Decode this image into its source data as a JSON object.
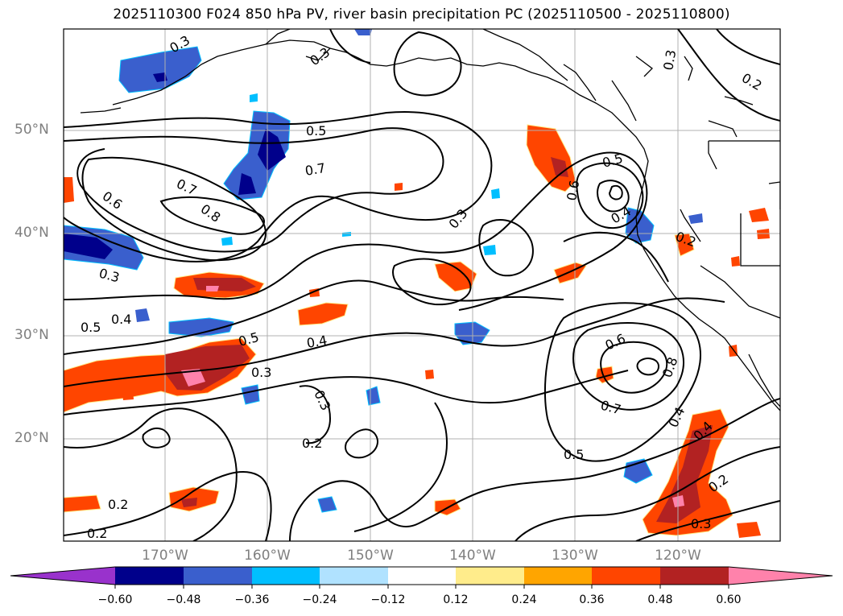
{
  "title": "2025110300 F024 850 hPa PV, river basin precipitation PC (2025110500 - 2025110800)",
  "map": {
    "lat_labels": [
      "50°N",
      "40°N",
      "30°N",
      "20°N"
    ],
    "lon_labels": [
      "170°W",
      "160°W",
      "150°W",
      "140°W",
      "130°W",
      "120°W"
    ],
    "contour_labels": [
      "0.3",
      "0.3",
      "0.3",
      "0.2",
      "0.5",
      "0.7",
      "0.6",
      "0.7",
      "0.8",
      "0.3",
      "0.6",
      "0.5",
      "0.4",
      "0.2",
      "0.3",
      "0.5",
      "0.4",
      "0.5",
      "0.4",
      "0.3",
      "0.3",
      "0.2",
      "0.6",
      "0.8",
      "0.7",
      "0.4",
      "0.4",
      "0.5",
      "0.2",
      "0.3",
      "0.2",
      "0.2"
    ]
  },
  "colorbar": {
    "colors": [
      "#9932cc",
      "#00008b",
      "#3a5fcd",
      "#00bfff",
      "#b0e2ff",
      "#ffffff",
      "#ffec8b",
      "#ffa500",
      "#ff4500",
      "#b22222",
      "#ff82ab"
    ],
    "tick_labels": [
      "−0.60",
      "−0.48",
      "−0.36",
      "−0.24",
      "−0.12",
      "0.12",
      "0.24",
      "0.36",
      "0.48",
      "0.60"
    ]
  }
}
